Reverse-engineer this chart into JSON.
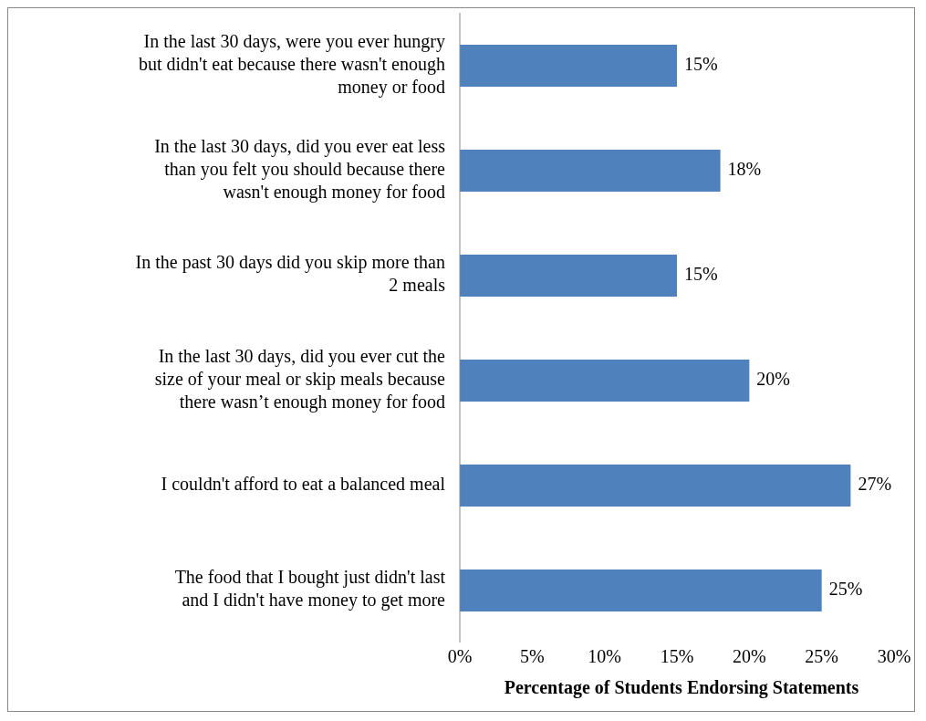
{
  "chart_data": {
    "type": "bar",
    "orientation": "horizontal",
    "xlabel": "Percentage of Students Endorsing Statements",
    "categories": [
      "In the last 30 days, were you ever hungry but didn't eat because there wasn't enough money or food",
      "In the last 30 days, did you ever eat less than you felt you should because there wasn't enough money for food",
      "In the past 30 days did you skip more than 2 meals",
      "In the last 30 days, did you ever cut the size of your meal or skip meals because there wasn’t enough money for food",
      "I couldn't afford to eat a balanced meal",
      "The food that I bought just didn't last and I didn't have money to get more"
    ],
    "values": [
      15,
      18,
      15,
      20,
      27,
      25
    ],
    "value_labels": [
      "15%",
      "18%",
      "15%",
      "20%",
      "27%",
      "25%"
    ],
    "color": "#4f81bd",
    "xlim": [
      0,
      30
    ],
    "xticks": [
      {
        "value": 0,
        "label": "0%"
      },
      {
        "value": 5,
        "label": "5%"
      },
      {
        "value": 10,
        "label": "10%"
      },
      {
        "value": 15,
        "label": "15%"
      },
      {
        "value": 20,
        "label": "20%"
      },
      {
        "value": 25,
        "label": "25%"
      },
      {
        "value": 30,
        "label": "30%"
      }
    ],
    "grid": false,
    "legend": false
  }
}
